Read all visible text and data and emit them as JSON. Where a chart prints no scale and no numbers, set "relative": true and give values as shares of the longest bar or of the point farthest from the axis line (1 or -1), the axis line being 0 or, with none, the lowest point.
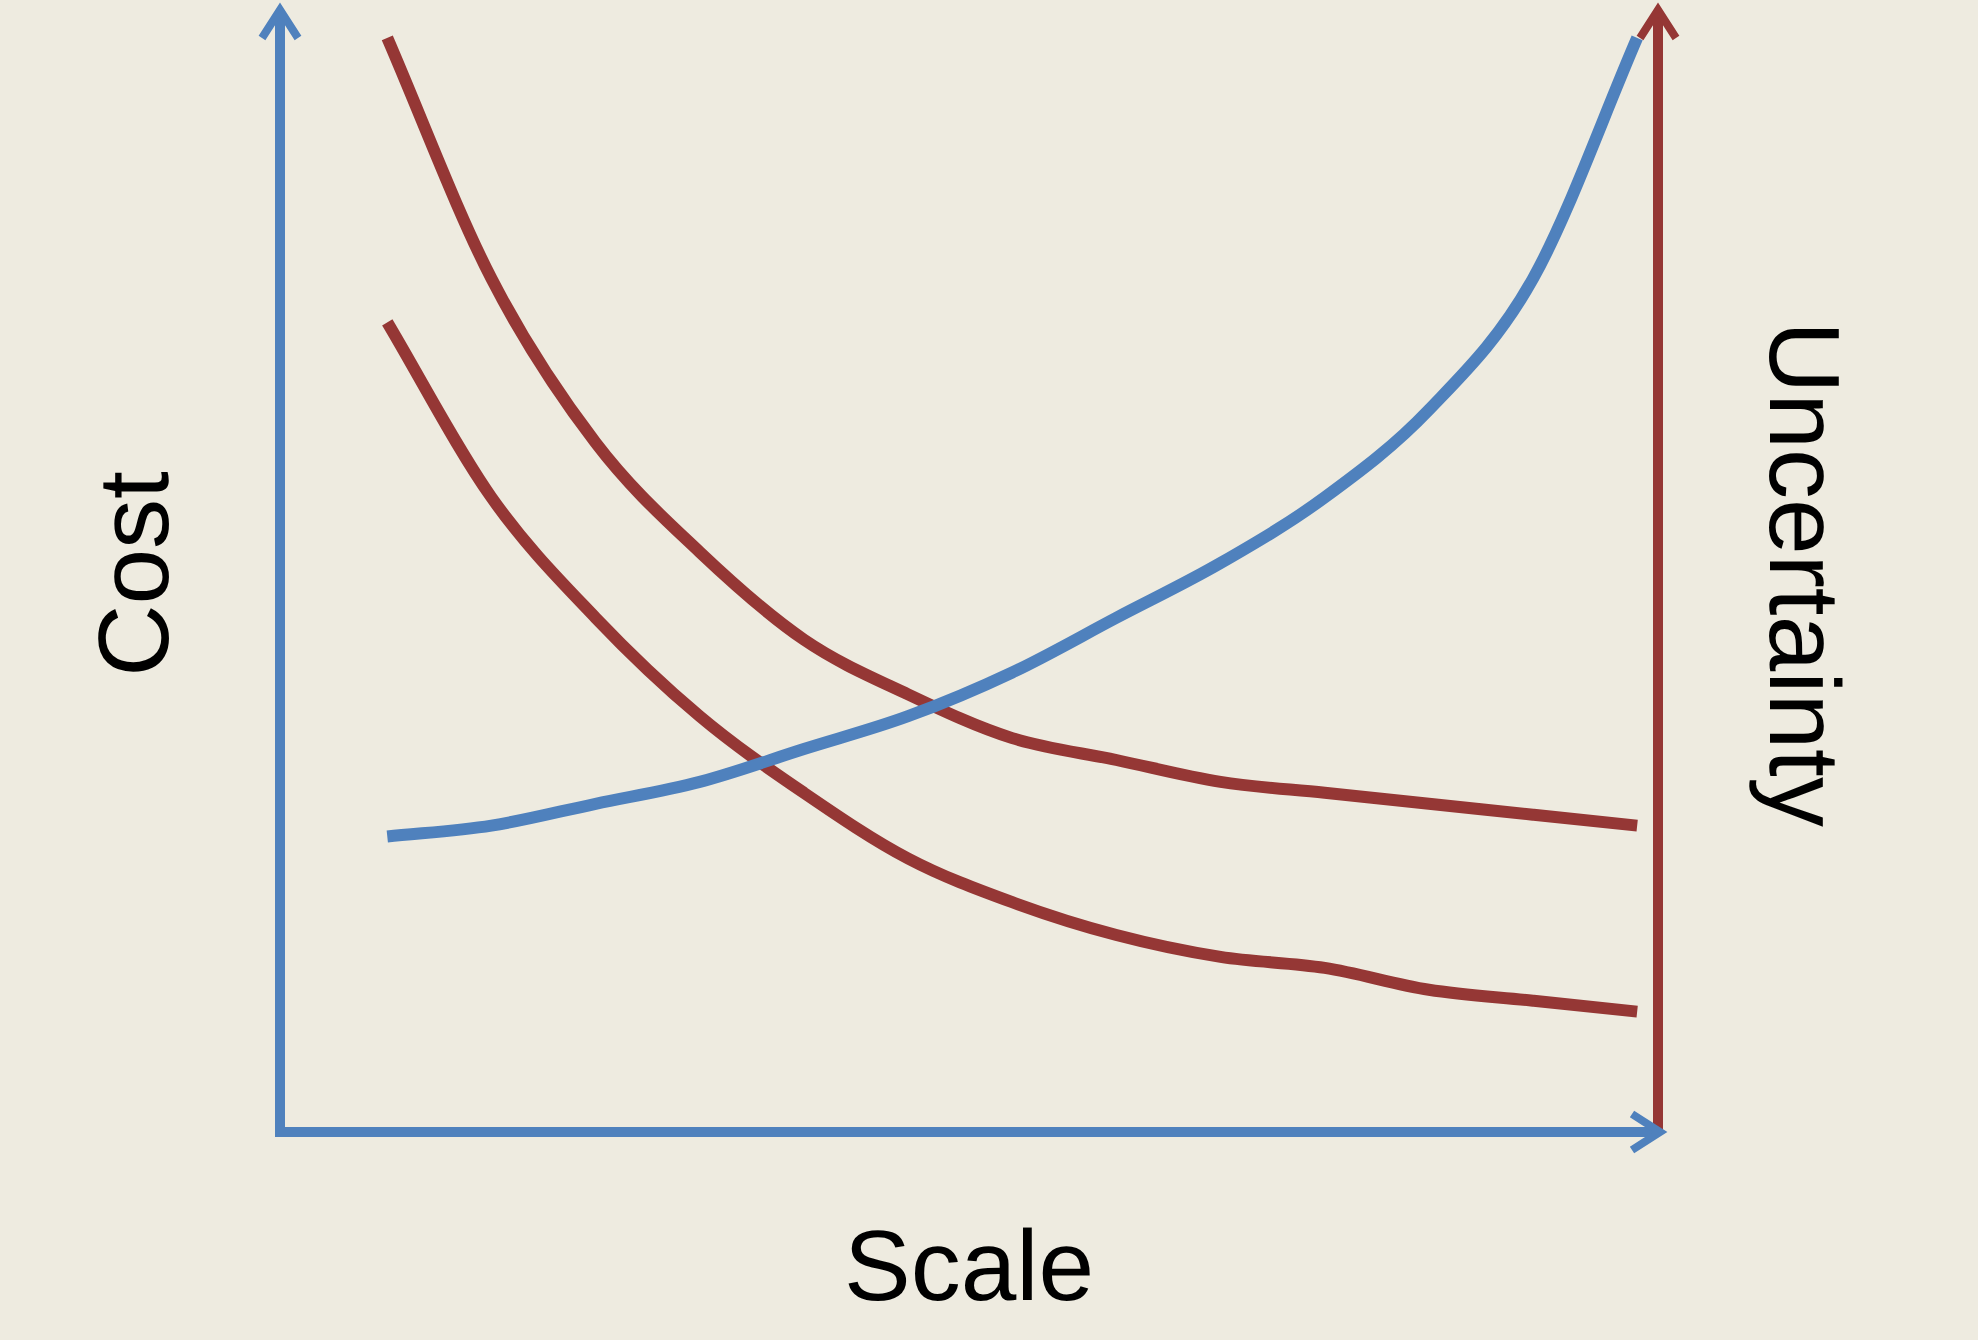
{
  "chart_data": {
    "type": "line",
    "relative": true,
    "xlabel": "Scale",
    "ylabel": "Cost",
    "y2label": "Uncertainty",
    "categories": [
      null,
      null,
      null,
      null,
      null,
      null,
      null,
      null,
      null,
      null,
      null,
      null,
      null
    ],
    "marker": "none",
    "legend": false,
    "grid": false,
    "series": [
      {
        "color": "#4f81bd",
        "values": [
          0.27,
          0.28,
          0.3,
          0.32,
          0.35,
          0.38,
          0.42,
          0.47,
          0.52,
          0.58,
          0.66,
          0.78,
          1.0
        ]
      },
      {
        "color": "#953735",
        "values": [
          1.0,
          0.78,
          0.63,
          0.53,
          0.45,
          0.4,
          0.36,
          0.34,
          0.32,
          0.31,
          0.3,
          0.29,
          0.28
        ]
      },
      {
        "color": "#953735",
        "values": [
          0.74,
          0.58,
          0.47,
          0.38,
          0.31,
          0.25,
          0.21,
          0.18,
          0.16,
          0.15,
          0.13,
          0.12,
          0.11
        ]
      }
    ]
  }
}
